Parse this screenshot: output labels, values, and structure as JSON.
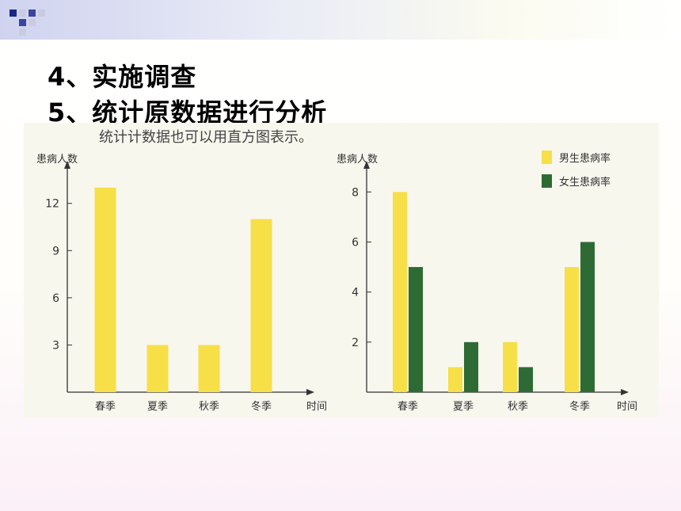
{
  "headings": [
    "4、实施调查",
    "5、统计原数据进行分析"
  ],
  "figure": {
    "caption": "统计计数据也可以用直方图表示。"
  },
  "colors": {
    "male": "#f7df47",
    "female": "#2e6b34",
    "axis": "#333333"
  },
  "chart_data": [
    {
      "type": "bar",
      "ylabel": "患病人数",
      "xlabel": "时间",
      "categories": [
        "春季",
        "夏季",
        "秋季",
        "冬季"
      ],
      "values": [
        13,
        3,
        3,
        11
      ],
      "yticks": [
        3,
        6,
        9,
        12
      ],
      "ylim": [
        0,
        14
      ],
      "grid": false
    },
    {
      "type": "bar",
      "ylabel": "患病人数",
      "xlabel": "时间",
      "categories": [
        "春季",
        "夏季",
        "秋季",
        "冬季"
      ],
      "series": [
        {
          "name": "男生患病率",
          "values": [
            8,
            1,
            2,
            5
          ]
        },
        {
          "name": "女生患病率",
          "values": [
            5,
            2,
            1,
            6
          ]
        }
      ],
      "yticks": [
        2,
        4,
        6,
        8
      ],
      "ylim": [
        0,
        8.8
      ],
      "legend": "top-right",
      "grid": false
    }
  ]
}
